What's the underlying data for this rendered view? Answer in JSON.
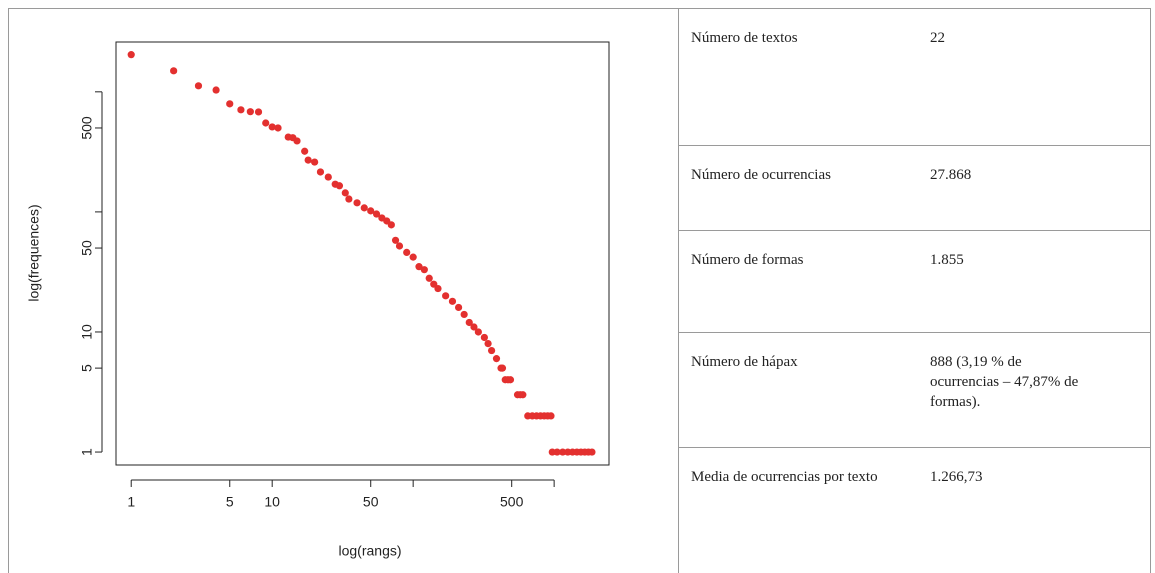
{
  "chart_data": {
    "type": "scatter",
    "xlabel": "log(rangs)",
    "ylabel": "log(frequences)",
    "xscale": "log",
    "yscale": "log",
    "color": "#e3302f",
    "xlim": [
      0.78,
      2450
    ],
    "ylim": [
      0.78,
      2600
    ],
    "xticks": [
      1,
      5,
      10,
      50,
      500
    ],
    "yticks": [
      1,
      5,
      10,
      50,
      500
    ],
    "xminor_ticks": [
      100,
      1000
    ],
    "yminor_ticks": [
      100,
      1000
    ],
    "x": [
      1,
      2,
      3,
      4,
      5,
      6,
      7,
      8,
      9,
      10,
      11,
      13,
      14,
      15,
      17,
      18,
      20,
      22,
      25,
      28,
      30,
      33,
      35,
      40,
      45,
      50,
      55,
      60,
      65,
      70,
      75,
      80,
      90,
      100,
      110,
      120,
      130,
      140,
      150,
      170,
      190,
      210,
      230,
      250,
      270,
      290,
      320,
      340,
      360,
      390,
      420,
      430,
      450,
      470,
      490,
      550,
      575,
      600,
      650,
      700,
      750,
      800,
      850,
      900,
      950,
      970,
      1050,
      1150,
      1250,
      1350,
      1450,
      1550,
      1650,
      1750,
      1855
    ],
    "values": [
      2040,
      1496,
      1122,
      1035,
      794,
      708,
      683,
      680,
      550,
      510,
      500,
      420,
      415,
      390,
      320,
      270,
      260,
      215,
      195,
      170,
      165,
      144,
      128,
      119,
      108,
      102,
      96,
      89,
      84,
      78,
      58,
      52,
      46,
      42,
      35,
      33,
      28,
      25,
      23,
      20,
      18,
      16,
      14,
      12,
      11,
      10,
      9,
      8,
      7,
      6,
      5,
      5,
      4,
      4,
      4,
      3,
      3,
      3,
      2,
      2,
      2,
      2,
      2,
      2,
      2,
      1,
      1,
      1,
      1,
      1,
      1,
      1,
      1,
      1,
      1
    ]
  },
  "table": {
    "rows": [
      [
        "Número de textos",
        "22"
      ],
      [
        "Número de ocurrencias",
        "27.868"
      ],
      [
        "Número de formas",
        "1.855"
      ],
      [
        "Número de hápax",
        "888 (3,19 % de ocurrencias – 47,87% de formas)."
      ],
      [
        "Media de ocurrencias por texto",
        "1.266,73"
      ]
    ]
  }
}
